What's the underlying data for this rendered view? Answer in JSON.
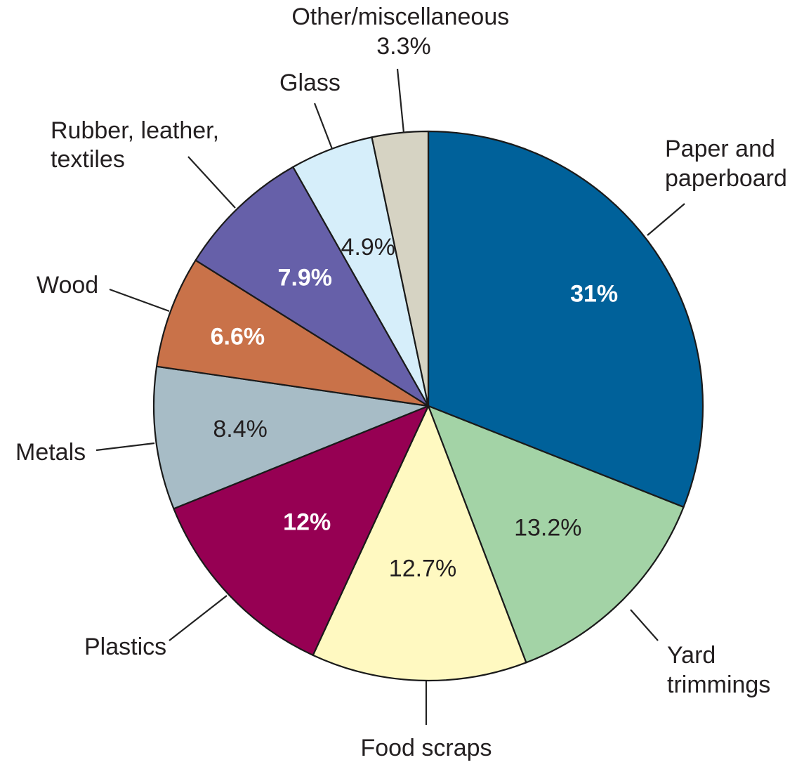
{
  "chart_data": {
    "type": "pie",
    "title": "",
    "slices": [
      {
        "label": "Paper and paperboard",
        "value": 31,
        "value_label": "31%",
        "color": "#00619a",
        "value_color": "#ffffff",
        "value_bold": true
      },
      {
        "label": "Yard trimmings",
        "value": 13.2,
        "value_label": "13.2%",
        "color": "#a3d3a6",
        "value_color": "#231f20",
        "value_bold": false
      },
      {
        "label": "Food scraps",
        "value": 12.7,
        "value_label": "12.7%",
        "color": "#fff9c1",
        "value_color": "#231f20",
        "value_bold": false
      },
      {
        "label": "Plastics",
        "value": 12,
        "value_label": "12%",
        "color": "#960053",
        "value_color": "#ffffff",
        "value_bold": true
      },
      {
        "label": "Metals",
        "value": 8.4,
        "value_label": "8.4%",
        "color": "#a7bcc6",
        "value_color": "#231f20",
        "value_bold": false
      },
      {
        "label": "Wood",
        "value": 6.6,
        "value_label": "6.6%",
        "color": "#c97249",
        "value_color": "#ffffff",
        "value_bold": true
      },
      {
        "label": "Rubber, leather, textiles",
        "value": 7.9,
        "value_label": "7.9%",
        "color": "#6660a9",
        "value_color": "#ffffff",
        "value_bold": true
      },
      {
        "label": "Glass",
        "value": 4.9,
        "value_label": "4.9%",
        "color": "#d6eefa",
        "value_color": "#231f20",
        "value_bold": false
      },
      {
        "label": "Other/miscellaneous",
        "value": 3.3,
        "value_label": "3.3%",
        "color": "#d6d3c3",
        "value_color": "#231f20",
        "value_bold": false
      }
    ],
    "labels": {
      "paper": [
        "Paper and",
        "paperboard"
      ],
      "yard": [
        "Yard",
        "trimmings"
      ],
      "food": [
        "Food scraps"
      ],
      "plastics": [
        "Plastics"
      ],
      "metals": [
        "Metals"
      ],
      "wood": [
        "Wood"
      ],
      "rubber": [
        "Rubber, leather,",
        "textiles"
      ],
      "glass": [
        "Glass"
      ],
      "other": [
        "Other/miscellaneous",
        "3.3%"
      ]
    }
  }
}
